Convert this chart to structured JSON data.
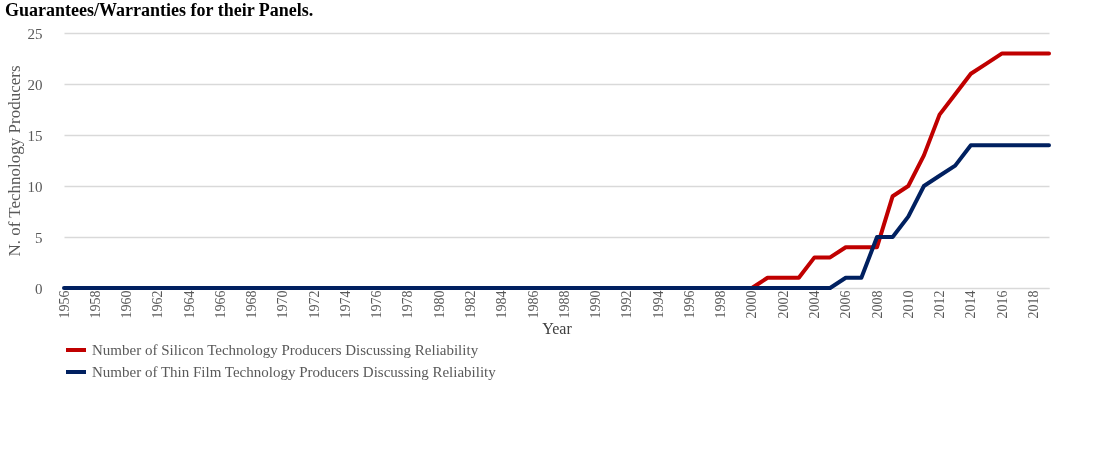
{
  "chart_data": {
    "type": "line",
    "title": "Guarantees/Warranties for their Panels.",
    "xlabel": "Year",
    "ylabel": "N. of Technology Producers",
    "x": [
      1956,
      1957,
      1958,
      1959,
      1960,
      1961,
      1962,
      1963,
      1964,
      1965,
      1966,
      1967,
      1968,
      1969,
      1970,
      1971,
      1972,
      1973,
      1974,
      1975,
      1976,
      1977,
      1978,
      1979,
      1980,
      1981,
      1982,
      1983,
      1984,
      1985,
      1986,
      1987,
      1988,
      1989,
      1990,
      1991,
      1992,
      1993,
      1994,
      1995,
      1996,
      1997,
      1998,
      1999,
      2000,
      2001,
      2002,
      2003,
      2004,
      2005,
      2006,
      2007,
      2008,
      2009,
      2010,
      2011,
      2012,
      2013,
      2014,
      2015,
      2016,
      2017,
      2018,
      2019
    ],
    "xlim": [
      1956,
      2019
    ],
    "xticks": [
      1956,
      1958,
      1960,
      1962,
      1964,
      1966,
      1968,
      1970,
      1972,
      1974,
      1976,
      1978,
      1980,
      1982,
      1984,
      1986,
      1988,
      1990,
      1992,
      1994,
      1996,
      1998,
      2000,
      2002,
      2004,
      2006,
      2008,
      2010,
      2012,
      2014,
      2016,
      2018
    ],
    "ylim": [
      0,
      25
    ],
    "yticks": [
      0,
      5,
      10,
      15,
      20,
      25
    ],
    "series": [
      {
        "name": "Number of Silicon Technology Producers Discussing Reliability",
        "color": "#c00000",
        "values": [
          null,
          null,
          null,
          null,
          null,
          null,
          null,
          null,
          null,
          null,
          null,
          null,
          null,
          null,
          null,
          null,
          null,
          null,
          null,
          null,
          null,
          null,
          null,
          null,
          null,
          null,
          null,
          null,
          null,
          null,
          null,
          null,
          null,
          null,
          null,
          null,
          null,
          null,
          null,
          null,
          null,
          null,
          null,
          null,
          0,
          1,
          1,
          1,
          3,
          3,
          4,
          4,
          4,
          9,
          10,
          13,
          17,
          19,
          21,
          22,
          23,
          23,
          23,
          23
        ]
      },
      {
        "name": "Number of Thin Film Technology Producers  Discussing Reliability",
        "color": "#002060",
        "values": [
          0,
          0,
          0,
          0,
          0,
          0,
          0,
          0,
          0,
          0,
          0,
          0,
          0,
          0,
          0,
          0,
          0,
          0,
          0,
          0,
          0,
          0,
          0,
          0,
          0,
          0,
          0,
          0,
          0,
          0,
          0,
          0,
          0,
          0,
          0,
          0,
          0,
          0,
          0,
          0,
          0,
          0,
          0,
          0,
          0,
          0,
          0,
          0,
          0,
          0,
          1,
          1,
          5,
          5,
          7,
          10,
          11,
          12,
          14,
          14,
          14,
          14,
          14,
          14
        ]
      }
    ],
    "grid": "y",
    "legend": "bottom",
    "marker": "none",
    "line_style": "solid"
  }
}
